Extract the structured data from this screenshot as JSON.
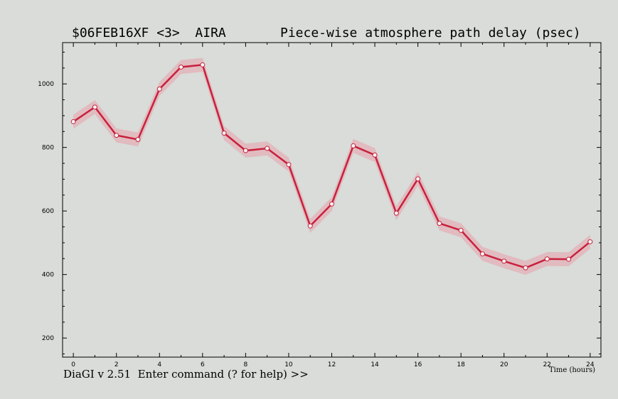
{
  "header": {
    "session": "$06FEB16XF <3>  AIRA",
    "plot_title": "Piece-wise atmosphere path delay (psec)"
  },
  "footer": {
    "prompt": "DiaGI v 2.51  Enter command (? for help) >>"
  },
  "colors": {
    "line": "#c8203c",
    "band": "#e8a0aa",
    "marker_fill": "#f4f4f4"
  },
  "chart_data": {
    "type": "line",
    "title": "Piece-wise atmosphere path delay (psec)",
    "xlabel": "Time (hours)",
    "ylabel": "",
    "xlim": [
      -0.5,
      24.5
    ],
    "ylim": [
      140,
      1130
    ],
    "x_ticks": [
      0,
      2,
      4,
      6,
      8,
      10,
      12,
      14,
      16,
      18,
      20,
      22,
      24
    ],
    "y_ticks": [
      200,
      400,
      600,
      800,
      1000
    ],
    "grid": false,
    "series": [
      {
        "x": [
          0,
          1,
          2,
          3,
          4,
          5,
          6,
          7,
          8,
          9,
          10,
          11,
          12,
          13,
          14,
          15,
          16,
          17,
          18,
          19,
          20,
          21,
          22,
          23,
          24
        ],
        "y": [
          881,
          927,
          838,
          825,
          984,
          1053,
          1060,
          845,
          790,
          797,
          746,
          553,
          622,
          805,
          776,
          593,
          701,
          561,
          539,
          465,
          442,
          421,
          449,
          448,
          503
        ],
        "error": [
          22,
          22,
          22,
          22,
          22,
          22,
          22,
          22,
          22,
          22,
          22,
          22,
          22,
          22,
          22,
          22,
          22,
          22,
          22,
          22,
          22,
          22,
          22,
          22,
          22
        ]
      }
    ]
  }
}
